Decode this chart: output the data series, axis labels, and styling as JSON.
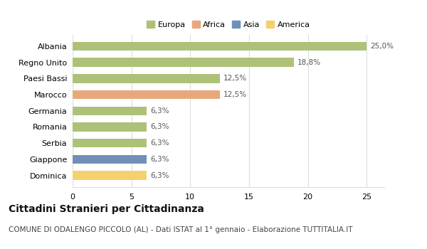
{
  "categories": [
    "Albania",
    "Regno Unito",
    "Paesi Bassi",
    "Marocco",
    "Germania",
    "Romania",
    "Serbia",
    "Giappone",
    "Dominica"
  ],
  "values": [
    25.0,
    18.8,
    12.5,
    12.5,
    6.3,
    6.3,
    6.3,
    6.3,
    6.3
  ],
  "labels": [
    "25,0%",
    "18,8%",
    "12,5%",
    "12,5%",
    "6,3%",
    "6,3%",
    "6,3%",
    "6,3%",
    "6,3%"
  ],
  "bar_colors": [
    "#adc178",
    "#adc178",
    "#adc178",
    "#e8a87c",
    "#adc178",
    "#adc178",
    "#adc178",
    "#7090b8",
    "#f5d06e"
  ],
  "legend": {
    "Europa": "#adc178",
    "Africa": "#e8a87c",
    "Asia": "#7090b8",
    "America": "#f5d06e"
  },
  "xlim": [
    0,
    26.5
  ],
  "xticks": [
    0,
    5,
    10,
    15,
    20,
    25
  ],
  "title": "Cittadini Stranieri per Cittadinanza",
  "subtitle": "COMUNE DI ODALENGO PICCOLO (AL) - Dati ISTAT al 1° gennaio - Elaborazione TUTTITALIA.IT",
  "background_color": "#ffffff",
  "grid_color": "#dddddd",
  "title_fontsize": 10,
  "subtitle_fontsize": 7.5,
  "label_fontsize": 7.5,
  "tick_fontsize": 8,
  "bar_height": 0.55
}
